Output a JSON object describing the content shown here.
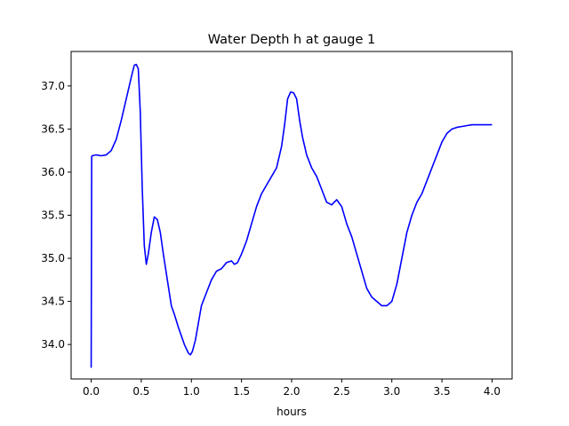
{
  "chart_data": {
    "type": "line",
    "title": "Water Depth h at gauge 1",
    "xlabel": "hours",
    "ylabel": "",
    "xlim": [
      -0.2,
      4.2
    ],
    "ylim": [
      33.6,
      37.4
    ],
    "xticks": [
      0.0,
      0.5,
      1.0,
      1.5,
      2.0,
      2.5,
      3.0,
      3.5,
      4.0
    ],
    "xtick_labels": [
      "0.0",
      "0.5",
      "1.0",
      "1.5",
      "2.0",
      "2.5",
      "3.0",
      "3.5",
      "4.0"
    ],
    "yticks": [
      34.0,
      34.5,
      35.0,
      35.5,
      36.0,
      36.5,
      37.0
    ],
    "ytick_labels": [
      "34.0",
      "34.5",
      "35.0",
      "35.5",
      "36.0",
      "36.5",
      "37.0"
    ],
    "grid": false,
    "legend": "none",
    "series": [
      {
        "color": "#0000ff",
        "x": [
          0.0,
          0.005,
          0.01,
          0.05,
          0.1,
          0.15,
          0.2,
          0.25,
          0.3,
          0.35,
          0.4,
          0.43,
          0.45,
          0.47,
          0.49,
          0.51,
          0.53,
          0.55,
          0.57,
          0.6,
          0.63,
          0.66,
          0.69,
          0.72,
          0.76,
          0.8,
          0.83,
          0.87,
          0.9,
          0.93,
          0.95,
          0.97,
          0.99,
          1.01,
          1.04,
          1.07,
          1.1,
          1.15,
          1.2,
          1.25,
          1.3,
          1.35,
          1.4,
          1.43,
          1.46,
          1.5,
          1.55,
          1.6,
          1.65,
          1.7,
          1.75,
          1.8,
          1.85,
          1.9,
          1.93,
          1.96,
          1.99,
          2.02,
          2.05,
          2.08,
          2.11,
          2.15,
          2.2,
          2.25,
          2.3,
          2.35,
          2.4,
          2.45,
          2.5,
          2.55,
          2.6,
          2.65,
          2.7,
          2.75,
          2.8,
          2.85,
          2.9,
          2.95,
          3.0,
          3.05,
          3.1,
          3.15,
          3.2,
          3.25,
          3.3,
          3.35,
          3.4,
          3.45,
          3.5,
          3.55,
          3.6,
          3.65,
          3.7,
          3.75,
          3.8,
          3.85,
          3.9,
          3.95,
          4.0
        ],
        "y": [
          33.73,
          36.18,
          36.19,
          36.2,
          36.19,
          36.2,
          36.25,
          36.38,
          36.6,
          36.85,
          37.1,
          37.24,
          37.25,
          37.2,
          36.7,
          35.8,
          35.15,
          34.93,
          35.05,
          35.3,
          35.48,
          35.45,
          35.3,
          35.05,
          34.75,
          34.45,
          34.35,
          34.2,
          34.1,
          34.0,
          33.95,
          33.9,
          33.88,
          33.92,
          34.05,
          34.25,
          34.45,
          34.6,
          34.75,
          34.85,
          34.88,
          34.95,
          34.97,
          34.93,
          34.95,
          35.05,
          35.2,
          35.4,
          35.6,
          35.75,
          35.85,
          35.95,
          36.05,
          36.3,
          36.55,
          36.85,
          36.93,
          36.92,
          36.85,
          36.6,
          36.4,
          36.2,
          36.05,
          35.95,
          35.8,
          35.65,
          35.62,
          35.68,
          35.6,
          35.4,
          35.25,
          35.05,
          34.85,
          34.65,
          34.55,
          34.5,
          34.45,
          34.45,
          34.5,
          34.7,
          35.0,
          35.3,
          35.5,
          35.65,
          35.75,
          35.9,
          36.05,
          36.2,
          36.35,
          36.45,
          36.5,
          36.52,
          36.53,
          36.54,
          36.55,
          36.55,
          36.55,
          36.55,
          36.55
        ]
      }
    ]
  }
}
